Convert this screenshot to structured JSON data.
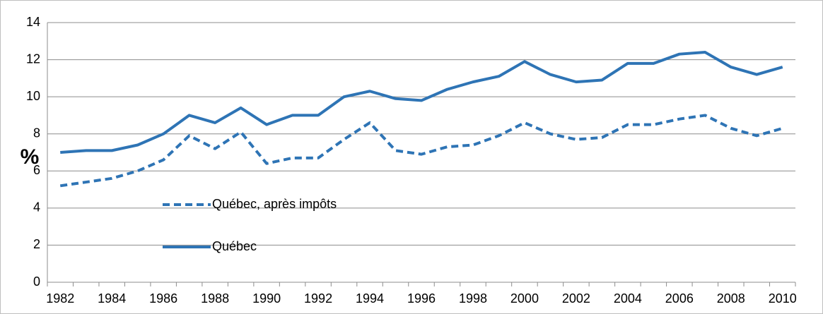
{
  "chart_data": {
    "type": "line",
    "y_label": "%",
    "categories": [
      "1982",
      null,
      "1984",
      null,
      "1986",
      null,
      "1988",
      null,
      "1990",
      null,
      "1992",
      null,
      "1994",
      null,
      "1996",
      null,
      "1998",
      null,
      "2000",
      null,
      "2002",
      null,
      "2004",
      null,
      "2006",
      null,
      "2008",
      null,
      "2010"
    ],
    "series": [
      {
        "name": "Québec, après impôts",
        "color": "#2e74b5",
        "dashed": true,
        "values": [
          5.2,
          5.4,
          5.6,
          6.0,
          6.6,
          7.9,
          7.2,
          8.1,
          6.4,
          6.7,
          6.7,
          7.7,
          8.6,
          7.1,
          6.9,
          7.3,
          7.4,
          7.9,
          8.6,
          8.0,
          7.7,
          7.8,
          8.5,
          8.5,
          8.8,
          9.0,
          8.3,
          7.9,
          8.3
        ]
      },
      {
        "name": "Québec",
        "color": "#2e74b5",
        "dashed": false,
        "values": [
          7.0,
          7.1,
          7.1,
          7.4,
          8.0,
          9.0,
          8.6,
          9.4,
          8.5,
          9.0,
          9.0,
          10.0,
          10.3,
          9.9,
          9.8,
          10.4,
          10.8,
          11.1,
          11.9,
          11.2,
          10.8,
          10.9,
          11.8,
          11.8,
          12.3,
          12.4,
          11.6,
          11.2,
          11.6
        ]
      }
    ],
    "ylim": [
      0,
      14
    ],
    "yticks": [
      0,
      2,
      4,
      6,
      8,
      10,
      12,
      14
    ],
    "grid": true,
    "legend": "left"
  }
}
